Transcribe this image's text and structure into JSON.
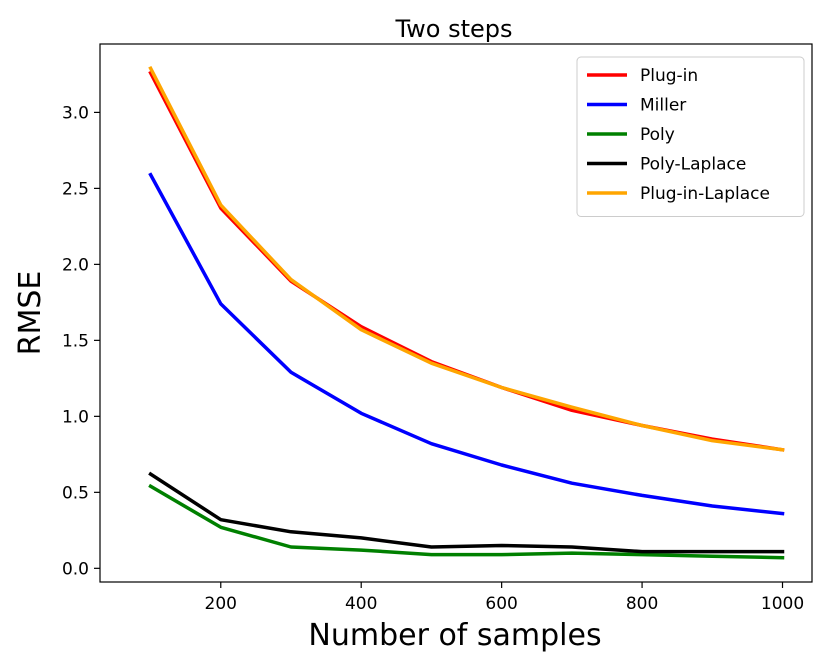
{
  "chart_data": {
    "type": "line",
    "title": "Two steps",
    "xlabel": "Number of samples",
    "ylabel": "RMSE",
    "x": [
      100,
      200,
      300,
      400,
      500,
      600,
      700,
      800,
      900,
      1000
    ],
    "xlim": [
      28,
      1042
    ],
    "ylim": [
      -0.09,
      3.45
    ],
    "xticks": [
      200,
      400,
      600,
      800,
      1000
    ],
    "yticks": [
      0.0,
      0.5,
      1.0,
      1.5,
      2.0,
      2.5,
      3.0
    ],
    "xtick_labels": [
      "200",
      "400",
      "600",
      "800",
      "1000"
    ],
    "ytick_labels": [
      "0.0",
      "0.5",
      "1.0",
      "1.5",
      "2.0",
      "2.5",
      "3.0"
    ],
    "grid": false,
    "legend_position": "top-right",
    "series": [
      {
        "name": "Plug-in",
        "color": "#ff0000",
        "values": [
          3.26,
          2.37,
          1.89,
          1.59,
          1.36,
          1.19,
          1.04,
          0.94,
          0.85,
          0.78
        ]
      },
      {
        "name": "Miller",
        "color": "#0000ff",
        "values": [
          2.59,
          1.74,
          1.29,
          1.02,
          0.82,
          0.68,
          0.56,
          0.48,
          0.41,
          0.36
        ]
      },
      {
        "name": "Poly",
        "color": "#008000",
        "values": [
          0.54,
          0.27,
          0.14,
          0.12,
          0.09,
          0.09,
          0.1,
          0.09,
          0.08,
          0.07
        ]
      },
      {
        "name": "Poly-Laplace",
        "color": "#000000",
        "values": [
          0.62,
          0.32,
          0.24,
          0.2,
          0.14,
          0.15,
          0.14,
          0.11,
          0.11,
          0.11
        ]
      },
      {
        "name": "Plug-in-Laplace",
        "color": "#ffa500",
        "values": [
          3.29,
          2.39,
          1.9,
          1.57,
          1.35,
          1.19,
          1.06,
          0.94,
          0.84,
          0.78
        ]
      }
    ]
  }
}
